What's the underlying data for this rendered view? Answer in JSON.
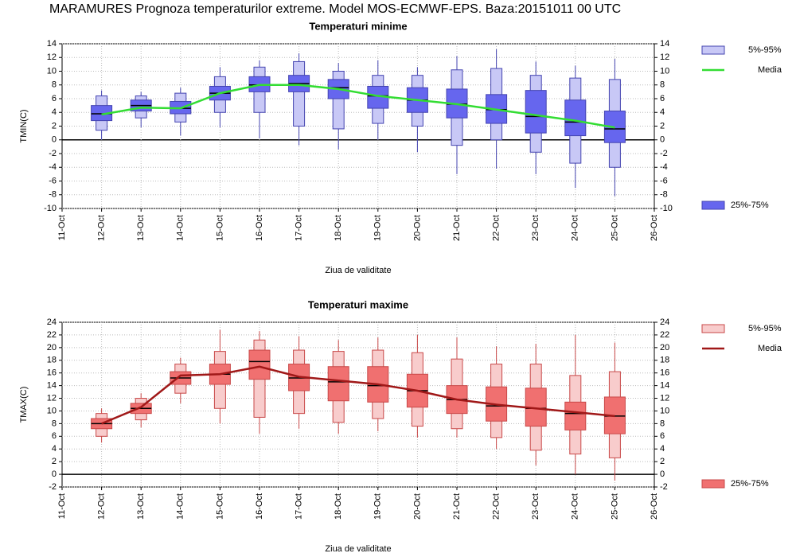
{
  "title": "MARAMURES  Prognoza temperaturilor extreme.  Model MOS-ECMWF-EPS. Baza:20151011 00 UTC",
  "chart_data": [
    {
      "type": "box",
      "title": "Temperaturi minime",
      "title_color": "#2020c0",
      "ylabel": "TMIN(C)",
      "xlabel": "Ziua de validitate",
      "categories": [
        "11-Oct",
        "12-Oct",
        "13-Oct",
        "14-Oct",
        "15-Oct",
        "16-Oct",
        "17-Oct",
        "18-Oct",
        "19-Oct",
        "20-Oct",
        "21-Oct",
        "22-Oct",
        "23-Oct",
        "24-Oct",
        "25-Oct",
        "26-Oct"
      ],
      "min": [
        null,
        0,
        1.8,
        0.6,
        1.8,
        0.2,
        -0.8,
        -1.4,
        0,
        -1.8,
        -5.0,
        -4.2,
        -5.0,
        -7.0,
        -8.2,
        null
      ],
      "p5": [
        null,
        1.4,
        3.2,
        2.6,
        4.0,
        4.0,
        2.0,
        1.6,
        2.4,
        2.0,
        -0.8,
        0,
        -1.8,
        -3.4,
        -4.0,
        null
      ],
      "p25": [
        null,
        2.8,
        4.2,
        3.8,
        5.8,
        7.0,
        7.0,
        6.0,
        4.6,
        4.0,
        3.2,
        2.4,
        1.0,
        0.6,
        -0.4,
        null
      ],
      "median": [
        null,
        3.8,
        5.0,
        4.6,
        6.8,
        8.0,
        8.2,
        7.6,
        6.4,
        5.8,
        5.2,
        4.4,
        3.4,
        2.6,
        1.6,
        null
      ],
      "p75": [
        null,
        5.0,
        5.8,
        5.6,
        7.8,
        9.2,
        9.4,
        8.8,
        7.8,
        7.6,
        7.4,
        6.6,
        7.2,
        5.8,
        4.2,
        null
      ],
      "p95": [
        null,
        6.4,
        6.4,
        6.8,
        9.2,
        10.6,
        11.4,
        10.0,
        9.4,
        9.4,
        10.2,
        10.4,
        9.4,
        9.0,
        8.8,
        null
      ],
      "max": [
        null,
        7.2,
        7.0,
        7.6,
        10.6,
        11.6,
        12.6,
        11.2,
        11.6,
        10.6,
        12.2,
        13.2,
        11.4,
        10.8,
        11.8,
        null
      ],
      "mean": [
        null,
        3.7,
        4.7,
        4.6,
        6.8,
        8.0,
        8.0,
        7.4,
        6.4,
        5.8,
        5.2,
        4.4,
        3.6,
        2.8,
        1.8,
        null
      ],
      "legend": {
        "outer": "5%-95%",
        "mean": "Media",
        "inner": "25%-75%"
      },
      "outer_color": "#c8c8f6",
      "inner_color": "#6666ee",
      "edge_color": "#4444b0",
      "mean_color": "#33dd33",
      "ylim": [
        -10,
        14
      ],
      "yticks": [
        -10,
        -8,
        -6,
        -4,
        -2,
        0,
        2,
        4,
        6,
        8,
        10,
        12,
        14
      ],
      "grid": true
    },
    {
      "type": "box",
      "title": "Temperaturi maxime",
      "title_color": "#d02020",
      "ylabel": "TMAX(C)",
      "xlabel": "Ziua de validitate",
      "categories": [
        "11-Oct",
        "12-Oct",
        "13-Oct",
        "14-Oct",
        "15-Oct",
        "16-Oct",
        "17-Oct",
        "18-Oct",
        "19-Oct",
        "20-Oct",
        "21-Oct",
        "22-Oct",
        "23-Oct",
        "24-Oct",
        "25-Oct",
        "26-Oct"
      ],
      "min": [
        null,
        5.0,
        7.4,
        11.2,
        8.0,
        6.4,
        7.2,
        6.4,
        6.8,
        5.8,
        5.8,
        4.0,
        1.4,
        0,
        -1.0,
        null
      ],
      "p5": [
        null,
        6.0,
        8.6,
        12.8,
        10.4,
        9.0,
        9.6,
        8.2,
        8.8,
        7.6,
        7.2,
        5.8,
        3.8,
        3.2,
        2.6,
        null
      ],
      "p25": [
        null,
        7.2,
        9.6,
        14.2,
        14.2,
        15.0,
        13.2,
        11.6,
        11.4,
        10.6,
        9.6,
        8.4,
        7.6,
        7.0,
        6.4,
        null
      ],
      "median": [
        null,
        8.0,
        10.4,
        15.2,
        15.8,
        17.8,
        15.2,
        14.6,
        14.0,
        13.2,
        11.8,
        10.8,
        10.4,
        9.6,
        9.2,
        null
      ],
      "p75": [
        null,
        8.8,
        11.2,
        16.2,
        17.4,
        19.6,
        17.4,
        17.0,
        17.0,
        15.8,
        14.0,
        13.8,
        13.6,
        11.4,
        12.2,
        null
      ],
      "p95": [
        null,
        9.6,
        12.0,
        17.4,
        19.4,
        21.2,
        19.6,
        19.4,
        19.6,
        19.2,
        18.2,
        17.4,
        17.4,
        15.6,
        16.2,
        null
      ],
      "max": [
        null,
        10.4,
        12.8,
        18.4,
        22.8,
        22.6,
        21.8,
        21.2,
        21.6,
        22.0,
        21.6,
        20.2,
        20.6,
        22.0,
        20.8,
        null
      ],
      "mean": [
        null,
        8.0,
        10.6,
        15.6,
        15.8,
        17.0,
        15.4,
        14.8,
        14.2,
        13.2,
        11.8,
        11.0,
        10.4,
        9.8,
        9.2,
        null
      ],
      "legend": {
        "outer": "5%-95%",
        "mean": "Media",
        "inner": "25%-75%"
      },
      "outer_color": "#f8cccc",
      "inner_color": "#f07070",
      "edge_color": "#c84848",
      "mean_color": "#a01818",
      "ylim": [
        -2,
        24
      ],
      "yticks": [
        -2,
        0,
        2,
        4,
        6,
        8,
        10,
        12,
        14,
        16,
        18,
        20,
        22,
        24
      ],
      "grid": true
    }
  ]
}
